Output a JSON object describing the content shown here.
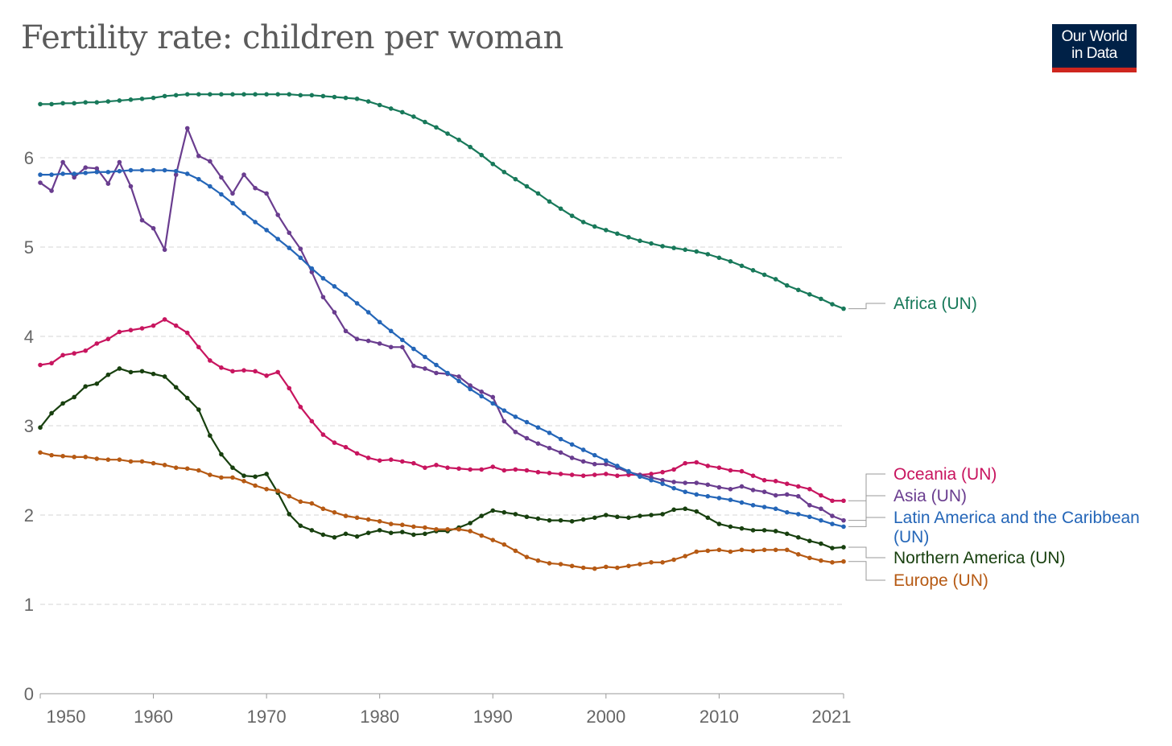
{
  "logo": {
    "line1": "Our World",
    "line2": "in Data"
  },
  "chart_data": {
    "type": "line",
    "title": "Fertility rate: children per woman",
    "xlabel": "",
    "ylabel": "",
    "xlim": [
      1950,
      2021
    ],
    "ylim": [
      0,
      6.9
    ],
    "x_ticks": [
      1950,
      1960,
      1970,
      1980,
      1990,
      2000,
      2010,
      2021
    ],
    "y_ticks": [
      0,
      1,
      2,
      3,
      4,
      5,
      6
    ],
    "grid": "horizontal-dashed",
    "legend": "right-end-labels",
    "x_start": 1950,
    "series": [
      {
        "name": "Africa (UN)",
        "label_lines": [
          "Africa (UN)"
        ],
        "color": "#18795a",
        "values": [
          6.6,
          6.6,
          6.61,
          6.61,
          6.62,
          6.62,
          6.63,
          6.64,
          6.65,
          6.66,
          6.67,
          6.69,
          6.7,
          6.71,
          6.71,
          6.71,
          6.71,
          6.71,
          6.71,
          6.71,
          6.71,
          6.71,
          6.71,
          6.7,
          6.7,
          6.69,
          6.68,
          6.67,
          6.66,
          6.63,
          6.59,
          6.55,
          6.51,
          6.46,
          6.4,
          6.34,
          6.27,
          6.2,
          6.12,
          6.03,
          5.93,
          5.84,
          5.76,
          5.68,
          5.6,
          5.51,
          5.43,
          5.35,
          5.28,
          5.23,
          5.19,
          5.15,
          5.11,
          5.07,
          5.04,
          5.01,
          4.99,
          4.97,
          4.95,
          4.92,
          4.88,
          4.84,
          4.79,
          4.74,
          4.69,
          4.64,
          4.57,
          4.52,
          4.47,
          4.42,
          4.36,
          4.31
        ]
      },
      {
        "name": "Oceania (UN)",
        "label_lines": [
          "Oceania (UN)"
        ],
        "color": "#c8155f",
        "values": [
          3.68,
          3.7,
          3.79,
          3.81,
          3.84,
          3.92,
          3.97,
          4.05,
          4.07,
          4.09,
          4.12,
          4.19,
          4.12,
          4.04,
          3.88,
          3.73,
          3.65,
          3.61,
          3.62,
          3.61,
          3.56,
          3.6,
          3.42,
          3.21,
          3.05,
          2.9,
          2.81,
          2.76,
          2.69,
          2.64,
          2.61,
          2.62,
          2.6,
          2.58,
          2.53,
          2.56,
          2.53,
          2.52,
          2.51,
          2.51,
          2.54,
          2.5,
          2.51,
          2.5,
          2.48,
          2.47,
          2.46,
          2.45,
          2.44,
          2.45,
          2.46,
          2.44,
          2.45,
          2.45,
          2.46,
          2.48,
          2.51,
          2.58,
          2.59,
          2.55,
          2.53,
          2.5,
          2.49,
          2.44,
          2.39,
          2.38,
          2.35,
          2.32,
          2.29,
          2.22,
          2.16,
          2.16
        ]
      },
      {
        "name": "Asia (UN)",
        "label_lines": [
          "Asia (UN)"
        ],
        "color": "#6a3d8f",
        "values": [
          5.72,
          5.63,
          5.95,
          5.78,
          5.89,
          5.88,
          5.71,
          5.95,
          5.68,
          5.3,
          5.21,
          4.97,
          5.81,
          6.33,
          6.02,
          5.96,
          5.78,
          5.6,
          5.81,
          5.66,
          5.6,
          5.36,
          5.16,
          4.98,
          4.72,
          4.44,
          4.27,
          4.06,
          3.97,
          3.95,
          3.92,
          3.88,
          3.88,
          3.67,
          3.64,
          3.59,
          3.58,
          3.55,
          3.45,
          3.38,
          3.32,
          3.05,
          2.93,
          2.86,
          2.8,
          2.75,
          2.7,
          2.64,
          2.6,
          2.57,
          2.57,
          2.53,
          2.48,
          2.45,
          2.42,
          2.39,
          2.37,
          2.36,
          2.36,
          2.34,
          2.31,
          2.29,
          2.32,
          2.28,
          2.26,
          2.22,
          2.23,
          2.21,
          2.11,
          2.07,
          1.99,
          1.94
        ]
      },
      {
        "name": "Latin America and the Caribbean (UN)",
        "label_lines": [
          "Latin America and the Caribbean",
          "(UN)"
        ],
        "color": "#2466b8",
        "values": [
          5.81,
          5.81,
          5.82,
          5.82,
          5.83,
          5.84,
          5.84,
          5.85,
          5.86,
          5.86,
          5.86,
          5.86,
          5.85,
          5.82,
          5.76,
          5.68,
          5.59,
          5.49,
          5.38,
          5.28,
          5.19,
          5.09,
          4.99,
          4.88,
          4.76,
          4.65,
          4.56,
          4.47,
          4.37,
          4.27,
          4.16,
          4.06,
          3.96,
          3.86,
          3.77,
          3.68,
          3.59,
          3.5,
          3.41,
          3.33,
          3.25,
          3.17,
          3.1,
          3.04,
          2.98,
          2.92,
          2.85,
          2.79,
          2.73,
          2.67,
          2.61,
          2.55,
          2.49,
          2.43,
          2.39,
          2.35,
          2.3,
          2.26,
          2.23,
          2.21,
          2.19,
          2.17,
          2.14,
          2.11,
          2.09,
          2.07,
          2.03,
          2.01,
          1.98,
          1.94,
          1.9,
          1.87
        ]
      },
      {
        "name": "Northern America (UN)",
        "label_lines": [
          "Northern America (UN)"
        ],
        "color": "#18400f",
        "values": [
          2.98,
          3.14,
          3.25,
          3.32,
          3.44,
          3.47,
          3.57,
          3.64,
          3.6,
          3.61,
          3.58,
          3.55,
          3.43,
          3.31,
          3.18,
          2.89,
          2.68,
          2.53,
          2.44,
          2.43,
          2.46,
          2.25,
          2.01,
          1.88,
          1.83,
          1.78,
          1.75,
          1.79,
          1.76,
          1.8,
          1.83,
          1.8,
          1.81,
          1.78,
          1.79,
          1.82,
          1.82,
          1.86,
          1.91,
          1.99,
          2.05,
          2.03,
          2.01,
          1.98,
          1.96,
          1.94,
          1.94,
          1.93,
          1.95,
          1.97,
          2.0,
          1.98,
          1.97,
          1.99,
          2.0,
          2.01,
          2.06,
          2.07,
          2.04,
          1.97,
          1.9,
          1.87,
          1.85,
          1.83,
          1.83,
          1.82,
          1.79,
          1.75,
          1.71,
          1.68,
          1.63,
          1.64
        ]
      },
      {
        "name": "Europe (UN)",
        "label_lines": [
          "Europe (UN)"
        ],
        "color": "#b65a14",
        "values": [
          2.7,
          2.67,
          2.66,
          2.65,
          2.65,
          2.63,
          2.62,
          2.62,
          2.6,
          2.6,
          2.58,
          2.56,
          2.53,
          2.52,
          2.5,
          2.45,
          2.42,
          2.42,
          2.38,
          2.33,
          2.29,
          2.27,
          2.21,
          2.15,
          2.13,
          2.07,
          2.03,
          1.99,
          1.97,
          1.95,
          1.93,
          1.9,
          1.89,
          1.87,
          1.86,
          1.84,
          1.84,
          1.84,
          1.82,
          1.77,
          1.72,
          1.67,
          1.6,
          1.53,
          1.49,
          1.46,
          1.45,
          1.43,
          1.41,
          1.4,
          1.42,
          1.41,
          1.43,
          1.45,
          1.47,
          1.47,
          1.5,
          1.54,
          1.59,
          1.6,
          1.61,
          1.59,
          1.61,
          1.6,
          1.61,
          1.61,
          1.61,
          1.56,
          1.52,
          1.49,
          1.47,
          1.48
        ]
      }
    ]
  }
}
